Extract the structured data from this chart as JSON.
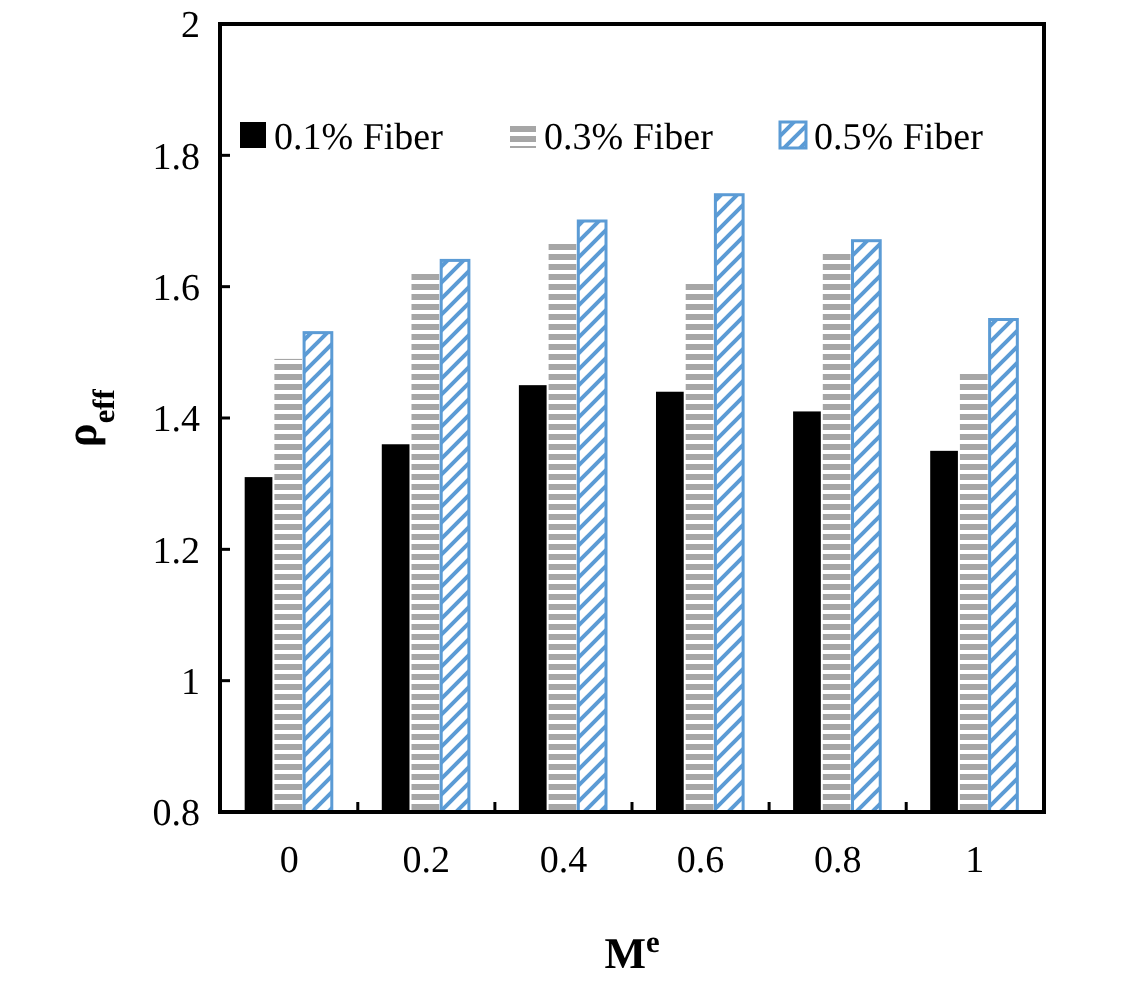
{
  "chart_data": {
    "type": "bar",
    "xlabel": "M$^{e}$",
    "ylabel": "ρ$_{eff}$",
    "categories": [
      "0",
      "0.2",
      "0.4",
      "0.6",
      "0.8",
      "1"
    ],
    "series": [
      {
        "name": "0.1% Fiber",
        "color": "#000000",
        "values": [
          1.31,
          1.36,
          1.45,
          1.44,
          1.41,
          1.35
        ]
      },
      {
        "name": "0.3% Fiber",
        "color": "#a6a6a6",
        "values": [
          1.49,
          1.62,
          1.67,
          1.61,
          1.65,
          1.47
        ]
      },
      {
        "name": "0.5% Fiber",
        "color": "#5b9bd5",
        "values": [
          1.53,
          1.64,
          1.7,
          1.74,
          1.67,
          1.55
        ]
      }
    ],
    "ylim": [
      0.8,
      2
    ],
    "yticks": [
      0.8,
      {
        "value": 1,
        "label": "1"
      },
      1.2,
      1.4,
      1.6,
      1.8,
      {
        "value": 2,
        "label": "2"
      }
    ],
    "grid": false,
    "legend": "top"
  }
}
